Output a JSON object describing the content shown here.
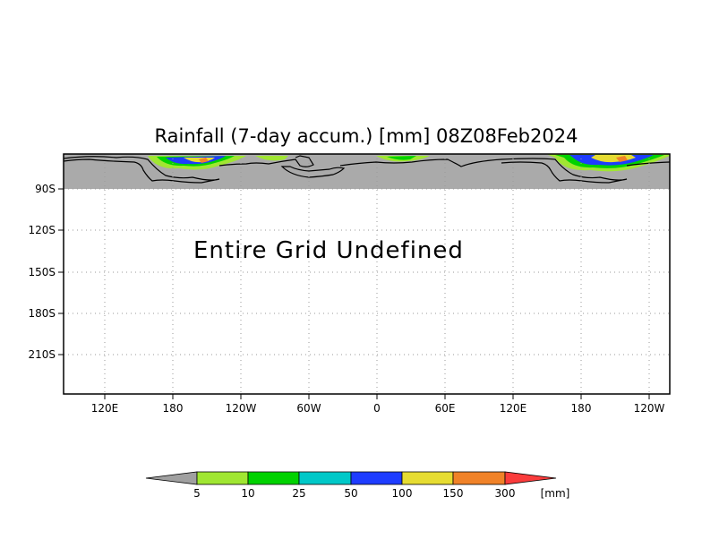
{
  "map": {
    "title": "Rainfall (7-day accum.) [mm] 08Z08Feb2024",
    "status_message": "Entire Grid Undefined",
    "undefined_fill": "#aaaaaa",
    "lat_ticks": [
      "90S",
      "120S",
      "150S",
      "180S",
      "210S"
    ],
    "lon_ticks": [
      "120E",
      "180",
      "120W",
      "60W",
      "0",
      "60E",
      "120E",
      "180",
      "120W"
    ]
  },
  "colorbar": {
    "units": "[mm]",
    "labels": [
      "5",
      "10",
      "25",
      "50",
      "100",
      "150",
      "300"
    ],
    "colors": [
      "#a0a0a0",
      "#a0e632",
      "#00d200",
      "#00c8c8",
      "#1e3cff",
      "#e6dc32",
      "#f08228",
      "#fa3c3c"
    ]
  }
}
